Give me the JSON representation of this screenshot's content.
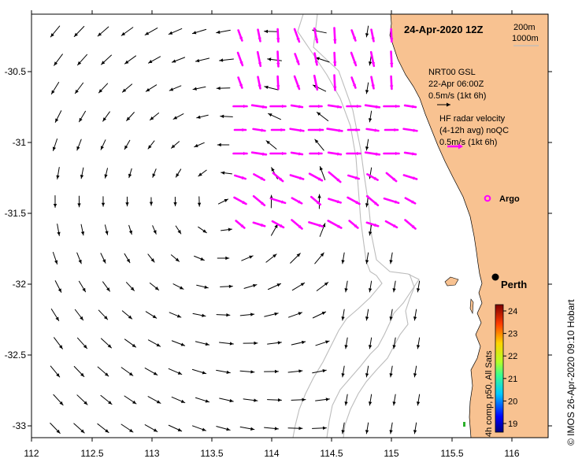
{
  "title": "24-Apr-2020 12Z",
  "bathymetry_legend": [
    "200m",
    "1000m"
  ],
  "legend": {
    "gsl": {
      "line1": "NRT00 GSL",
      "line2": "22-Apr 06:00Z",
      "line3": "0.5m/s (1kt 6h)"
    },
    "hf": {
      "line1": "HF radar velocity",
      "line2": "(4-12h avg) noQC",
      "line3": "0.5m/s (1kt 6h)"
    }
  },
  "argo_label": "Argo",
  "place_label": "Perth",
  "credit": "© IMOS 26-Apr-2020 09:10 Hobart",
  "colorbar": {
    "label": "4h comp, p50, All Sats",
    "ticks": [
      "24",
      "23",
      "22",
      "21",
      "20",
      "19"
    ]
  },
  "x_ticks": [
    "112",
    "112.5",
    "113",
    "113.5",
    "114",
    "114.5",
    "115",
    "115.5",
    "116"
  ],
  "y_ticks": [
    "-30.5",
    "-31",
    "-31.5",
    "-32",
    "-32.5",
    "-33"
  ],
  "colors": {
    "land": "#f8c291",
    "gsl_arrow": "#000000",
    "hf_arrow": "#ff00ff",
    "isobath": "#bcbcbc",
    "frame": "#000000"
  },
  "chart_data": {
    "type": "vector-field",
    "lon_range": [
      112,
      116.3
    ],
    "lat_range": [
      -33.1,
      -30.1
    ],
    "place": {
      "name": "Perth",
      "lon": 115.86,
      "lat": -31.95
    },
    "argo": {
      "lon": 115.65,
      "lat": -31.4
    }
  }
}
